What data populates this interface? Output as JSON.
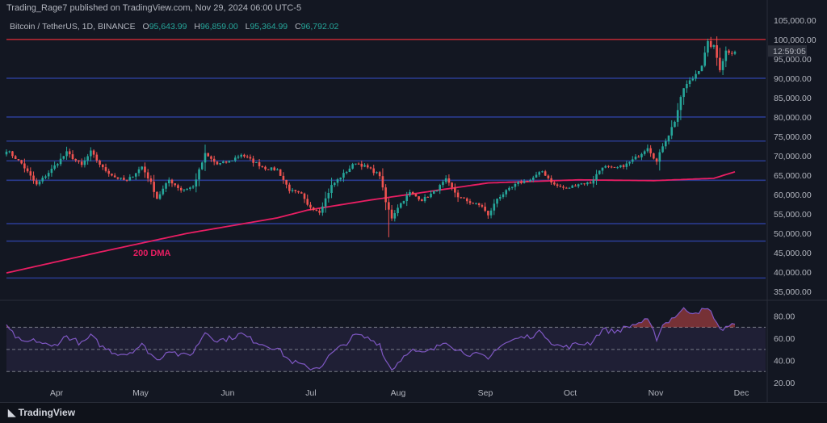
{
  "header": {
    "publisher": "Trading_Rage7 published on TradingView.com, Nov 29, 2024 06:00 UTC-5"
  },
  "legend": {
    "symbol": "Bitcoin / TetherUS, 1D, BINANCE",
    "open_label": "O",
    "open": "95,643.99",
    "high_label": "H",
    "high": "96,859.00",
    "low_label": "L",
    "low": "95,364.99",
    "close_label": "C",
    "close": "96,792.02"
  },
  "countdown": "12:59:05",
  "footer": {
    "brand": "TradingView"
  },
  "chart_data": {
    "type": "candlestick",
    "price_axis": {
      "ticks": [
        35000,
        40000,
        45000,
        50000,
        55000,
        60000,
        65000,
        70000,
        75000,
        80000,
        85000,
        90000,
        95000,
        100000,
        105000
      ],
      "tick_labels": [
        "35,000.00",
        "40,000.00",
        "45,000.00",
        "50,000.00",
        "55,000.00",
        "60,000.00",
        "65,000.00",
        "70,000.00",
        "75,000.00",
        "80,000.00",
        "85,000.00",
        "90,000.00",
        "95,000.00",
        "100,000.00",
        "105,000.00"
      ],
      "range": [
        34000,
        106000
      ]
    },
    "time_axis": {
      "labels": [
        "Apr",
        "May",
        "Jun",
        "Jul",
        "Aug",
        "Sep",
        "Oct",
        "Nov",
        "Dec"
      ]
    },
    "horizontal_levels": [
      {
        "value": 100000,
        "color": "#b22833"
      },
      {
        "value": 90000,
        "color": "#2a3b8f"
      },
      {
        "value": 80000,
        "color": "#2a3b8f"
      },
      {
        "value": 73800,
        "color": "#2a3b8f"
      },
      {
        "value": 68700,
        "color": "#2a3b8f"
      },
      {
        "value": 63700,
        "color": "#2a3b8f"
      },
      {
        "value": 52500,
        "color": "#2a3b8f"
      },
      {
        "value": 48000,
        "color": "#2a3b8f"
      },
      {
        "value": 38500,
        "color": "#2a3b8f"
      }
    ],
    "dma": {
      "label": "200 DMA",
      "color": "#e91e63",
      "points": [
        [
          0,
          39800
        ],
        [
          30,
          45000
        ],
        [
          60,
          50000
        ],
        [
          90,
          54000
        ],
        [
          100,
          56000
        ],
        [
          120,
          58500
        ],
        [
          160,
          63000
        ],
        [
          190,
          63800
        ],
        [
          215,
          63600
        ],
        [
          235,
          64200
        ],
        [
          245,
          66600
        ]
      ]
    },
    "candles_anchor_close": [
      [
        0,
        71500
      ],
      [
        5,
        68000
      ],
      [
        10,
        62500
      ],
      [
        15,
        66500
      ],
      [
        20,
        70800
      ],
      [
        25,
        67500
      ],
      [
        28,
        71000
      ],
      [
        32,
        66800
      ],
      [
        36,
        64500
      ],
      [
        40,
        63500
      ],
      [
        45,
        67200
      ],
      [
        48,
        63000
      ],
      [
        50,
        59000
      ],
      [
        54,
        63800
      ],
      [
        58,
        61200
      ],
      [
        62,
        62000
      ],
      [
        66,
        70400
      ],
      [
        70,
        67800
      ],
      [
        74,
        68500
      ],
      [
        78,
        70400
      ],
      [
        82,
        68500
      ],
      [
        86,
        66800
      ],
      [
        90,
        66400
      ],
      [
        94,
        61200
      ],
      [
        98,
        60000
      ],
      [
        100,
        57200
      ],
      [
        104,
        55600
      ],
      [
        108,
        62300
      ],
      [
        112,
        65300
      ],
      [
        116,
        68300
      ],
      [
        120,
        66900
      ],
      [
        124,
        65000
      ],
      [
        126,
        58000
      ],
      [
        128,
        54000
      ],
      [
        130,
        56800
      ],
      [
        134,
        60500
      ],
      [
        138,
        58600
      ],
      [
        142,
        60600
      ],
      [
        146,
        63800
      ],
      [
        150,
        59500
      ],
      [
        154,
        58000
      ],
      [
        158,
        57000
      ],
      [
        160,
        54500
      ],
      [
        163,
        59000
      ],
      [
        166,
        60800
      ],
      [
        170,
        63000
      ],
      [
        174,
        63800
      ],
      [
        178,
        66000
      ],
      [
        182,
        62500
      ],
      [
        186,
        61500
      ],
      [
        190,
        62800
      ],
      [
        194,
        63000
      ],
      [
        198,
        67300
      ],
      [
        202,
        66600
      ],
      [
        206,
        67800
      ],
      [
        210,
        70000
      ],
      [
        213,
        72300
      ],
      [
        216,
        68400
      ],
      [
        218,
        72700
      ],
      [
        220,
        75500
      ],
      [
        222,
        79000
      ],
      [
        225,
        87500
      ],
      [
        228,
        90000
      ],
      [
        231,
        93500
      ],
      [
        233,
        99000
      ],
      [
        235,
        98000
      ],
      [
        237,
        92500
      ],
      [
        239,
        97000
      ],
      [
        241,
        96792
      ]
    ],
    "rsi": {
      "levels": [
        70,
        50,
        30
      ],
      "tick_labels": [
        "80.00",
        "60.00",
        "40.00",
        "20.00"
      ],
      "ticks": [
        80,
        60,
        40,
        20
      ],
      "range": [
        20,
        90
      ],
      "anchors": [
        [
          0,
          70
        ],
        [
          5,
          56
        ],
        [
          10,
          58
        ],
        [
          15,
          52
        ],
        [
          20,
          62
        ],
        [
          25,
          55
        ],
        [
          28,
          62
        ],
        [
          32,
          52
        ],
        [
          36,
          47
        ],
        [
          40,
          46
        ],
        [
          45,
          54
        ],
        [
          48,
          46
        ],
        [
          50,
          40
        ],
        [
          54,
          50
        ],
        [
          58,
          44
        ],
        [
          62,
          47
        ],
        [
          66,
          66
        ],
        [
          70,
          58
        ],
        [
          74,
          60
        ],
        [
          78,
          64
        ],
        [
          82,
          58
        ],
        [
          86,
          54
        ],
        [
          90,
          51
        ],
        [
          94,
          40
        ],
        [
          98,
          36
        ],
        [
          100,
          33
        ],
        [
          104,
          34
        ],
        [
          108,
          46
        ],
        [
          112,
          54
        ],
        [
          116,
          63
        ],
        [
          120,
          60
        ],
        [
          124,
          55
        ],
        [
          126,
          40
        ],
        [
          128,
          32
        ],
        [
          130,
          38
        ],
        [
          134,
          50
        ],
        [
          138,
          46
        ],
        [
          142,
          50
        ],
        [
          146,
          58
        ],
        [
          150,
          49
        ],
        [
          154,
          46
        ],
        [
          158,
          44
        ],
        [
          160,
          40
        ],
        [
          163,
          52
        ],
        [
          166,
          56
        ],
        [
          170,
          60
        ],
        [
          174,
          62
        ],
        [
          178,
          66
        ],
        [
          182,
          54
        ],
        [
          186,
          52
        ],
        [
          190,
          55
        ],
        [
          194,
          56
        ],
        [
          198,
          68
        ],
        [
          202,
          66
        ],
        [
          206,
          70
        ],
        [
          210,
          74
        ],
        [
          213,
          76
        ],
        [
          216,
          60
        ],
        [
          218,
          72
        ],
        [
          220,
          76
        ],
        [
          222,
          80
        ],
        [
          225,
          86
        ],
        [
          228,
          84
        ],
        [
          231,
          85
        ],
        [
          233,
          86
        ],
        [
          235,
          80
        ],
        [
          237,
          67
        ],
        [
          239,
          71
        ],
        [
          241,
          72
        ]
      ]
    }
  }
}
